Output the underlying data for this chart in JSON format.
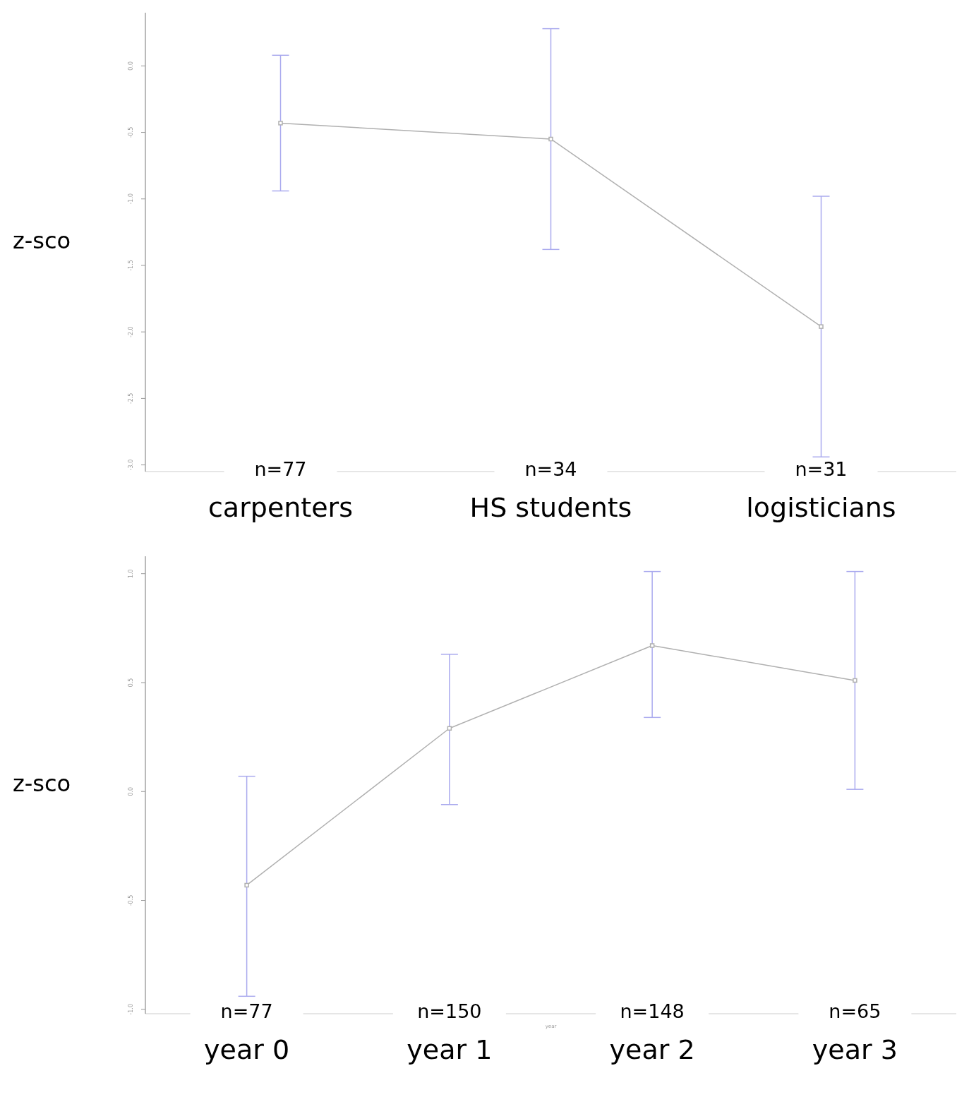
{
  "chart_data": [
    {
      "type": "line",
      "ylabel": "z-sco",
      "categories": [
        "carpenters",
        "HS students",
        "logisticians"
      ],
      "series": [
        {
          "color": "#b0b0b0",
          "values": [
            -0.43,
            -0.55,
            -1.96
          ],
          "errors": [
            [
              -0.94,
              0.08
            ],
            [
              -1.38,
              0.28
            ],
            [
              -2.94,
              -0.98
            ]
          ]
        }
      ],
      "ylim": [
        -3.05,
        0.4
      ],
      "yticks": [
        {
          "value": 0,
          "label": "0.0"
        },
        {
          "value": -0.5,
          "label": "-0.5"
        },
        {
          "value": -1,
          "label": "-1.0"
        },
        {
          "value": -1.5,
          "label": "-1.5"
        },
        {
          "value": -2,
          "label": "-2.0"
        },
        {
          "value": -2.5,
          "label": "-2.5"
        },
        {
          "value": -3,
          "label": "-3.0"
        }
      ],
      "annotations": [
        "n=77",
        "n=34",
        "n=31"
      ],
      "grid": false,
      "legend": false,
      "marker": "square",
      "line_style": "solid"
    },
    {
      "type": "line",
      "ylabel": "z-sco",
      "xlabel": "year",
      "categories": [
        "year 0",
        "year 1",
        "year 2",
        "year 3"
      ],
      "series": [
        {
          "color": "#b0b0b0",
          "values": [
            -0.43,
            0.29,
            0.67,
            0.51
          ],
          "errors": [
            [
              -0.94,
              0.07
            ],
            [
              -0.06,
              0.63
            ],
            [
              0.34,
              1.01
            ],
            [
              0.01,
              1.01
            ]
          ]
        }
      ],
      "ylim": [
        -1.02,
        1.08
      ],
      "yticks": [
        {
          "value": 1,
          "label": "1.0"
        },
        {
          "value": 0.5,
          "label": "0.5"
        },
        {
          "value": 0,
          "label": "0.0"
        },
        {
          "value": -0.5,
          "label": "-0.5"
        },
        {
          "value": -1,
          "label": "-1.0"
        }
      ],
      "annotations": [
        "n=77",
        "n=150",
        "n=148",
        "n=65"
      ],
      "grid": false,
      "legend": false,
      "marker": "square",
      "line_style": "solid"
    }
  ]
}
